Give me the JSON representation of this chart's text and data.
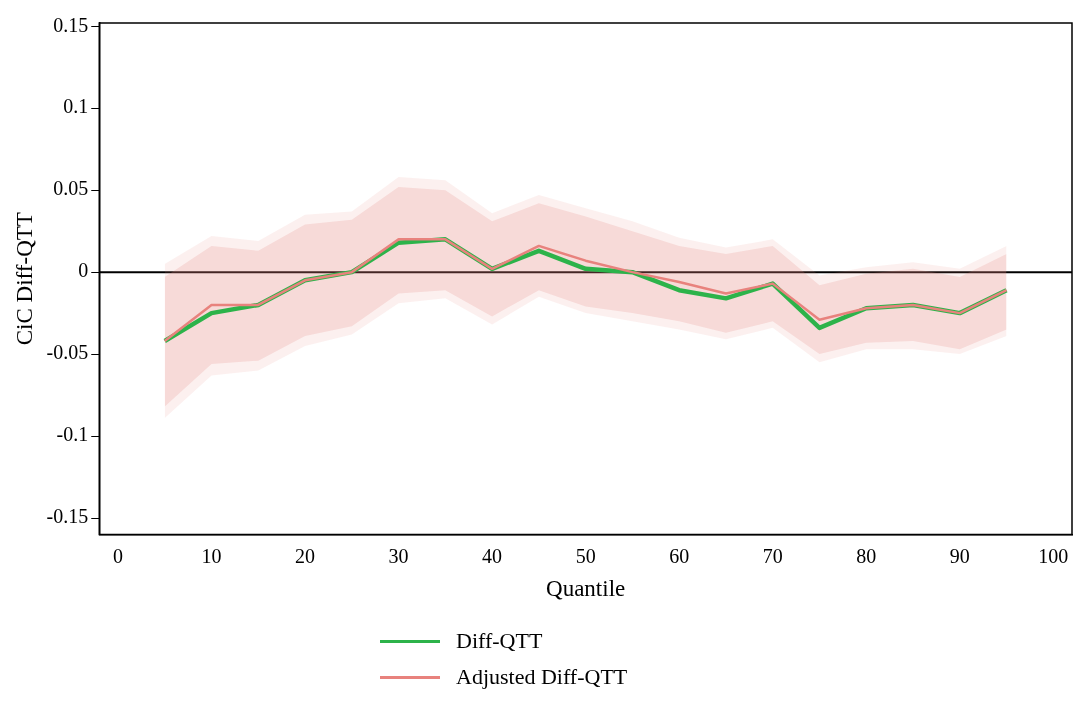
{
  "chart_data": {
    "type": "line",
    "xlabel": "Quantile",
    "ylabel": "CiC Diff-QTT",
    "x": [
      5,
      10,
      15,
      20,
      25,
      30,
      35,
      40,
      45,
      50,
      55,
      60,
      65,
      70,
      75,
      80,
      85,
      90,
      95
    ],
    "series": [
      {
        "name": "Diff-QTT",
        "color": "#2db34a",
        "values": [
          -0.042,
          -0.025,
          -0.02,
          -0.005,
          0,
          0.018,
          0.02,
          0.002,
          0.013,
          0.002,
          0,
          -0.011,
          -0.016,
          -0.007,
          -0.034,
          -0.022,
          -0.02,
          -0.025,
          -0.011
        ],
        "lower": [
          -0.089,
          -0.063,
          -0.06,
          -0.045,
          -0.038,
          -0.019,
          -0.016,
          -0.032,
          -0.015,
          -0.025,
          -0.03,
          -0.035,
          -0.041,
          -0.034,
          -0.055,
          -0.047,
          -0.047,
          -0.05,
          -0.039
        ],
        "upper": [
          0.005,
          0.022,
          0.019,
          0.035,
          0.037,
          0.058,
          0.056,
          0.036,
          0.047,
          0.039,
          0.031,
          0.021,
          0.015,
          0.02,
          -0.002,
          0.003,
          0.006,
          0.002,
          0.016
        ]
      },
      {
        "name": "Adjusted Diff-QTT",
        "color": "#e8827d",
        "values": [
          -0.042,
          -0.02,
          -0.02,
          -0.005,
          0,
          0.02,
          0.02,
          0.002,
          0.016,
          0.007,
          0,
          -0.006,
          -0.013,
          -0.007,
          -0.029,
          -0.022,
          -0.02,
          -0.025,
          -0.011
        ],
        "lower": [
          -0.082,
          -0.056,
          -0.054,
          -0.039,
          -0.033,
          -0.013,
          -0.011,
          -0.027,
          -0.011,
          -0.021,
          -0.025,
          -0.03,
          -0.037,
          -0.03,
          -0.05,
          -0.043,
          -0.042,
          -0.047,
          -0.035
        ],
        "upper": [
          -0.003,
          0.016,
          0.013,
          0.029,
          0.032,
          0.052,
          0.05,
          0.031,
          0.042,
          0.034,
          0.025,
          0.016,
          0.011,
          0.016,
          -0.008,
          -0.001,
          0.002,
          -0.003,
          0.011
        ]
      }
    ],
    "xlim": [
      -2,
      102
    ],
    "xticks": [
      0,
      10,
      20,
      30,
      40,
      50,
      60,
      70,
      80,
      90,
      100
    ],
    "ylim": [
      -0.16,
      0.152
    ],
    "yticks": [
      -0.15,
      -0.1,
      -0.05,
      0,
      0.05,
      0.1,
      0.15
    ],
    "ref_lines": [
      {
        "axis": "y",
        "value": 0,
        "color": "#000000"
      }
    ],
    "grid": false,
    "legend": "bottom",
    "marker": "none",
    "line_style": "solid"
  }
}
